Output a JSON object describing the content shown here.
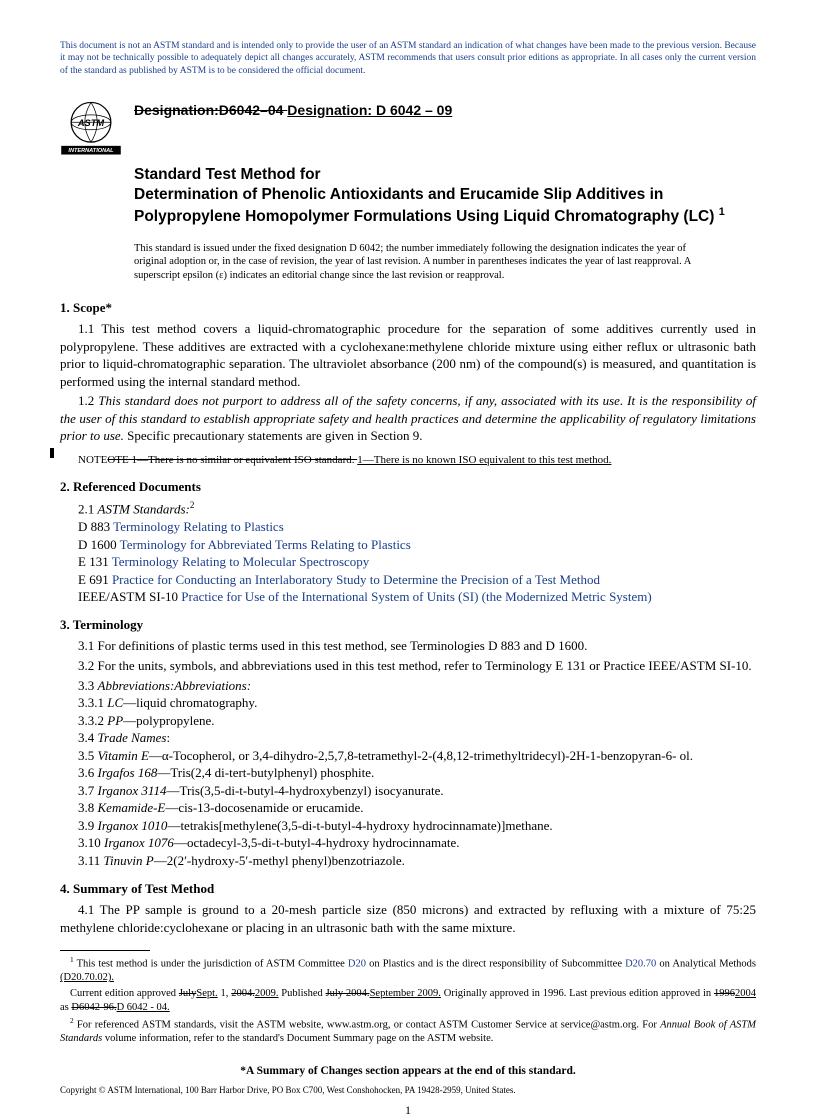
{
  "colors": {
    "link": "#1a3e8c",
    "text": "#000000",
    "background": "#ffffff"
  },
  "disclaimer": "This document is not an ASTM standard and is intended only to provide the user of an ASTM standard an indication of what changes have been made to the previous version. Because it may not be technically possible to adequately depict all changes accurately, ASTM recommends that users consult prior editions as appropriate. In all cases only the current version of the standard as published by ASTM is to be considered the official document.",
  "logo_text": "INTERNATIONAL",
  "designation_old": "Designation:D6042–04 ",
  "designation_new": "Designation: D 6042 – 09",
  "title_line1": "Standard Test Method for",
  "title_line2": "Determination of Phenolic Antioxidants and Erucamide Slip Additives in Polypropylene Homopolymer Formulations Using Liquid Chromatography (LC)",
  "title_sup": "1",
  "issuance": "This standard is issued under the fixed designation D 6042; the number immediately following the designation indicates the year of original adoption or, in the case of revision, the year of last revision. A number in parentheses indicates the year of last reapproval. A superscript epsilon (ε) indicates an editorial change since the last revision or reapproval.",
  "s1_head": "1. Scope*",
  "s1_1": "1.1 This test method covers a liquid-chromatographic procedure for the separation of some additives currently used in polypropylene. These additives are extracted with a cyclohexane:methylene chloride mixture using either reflux or ultrasonic bath prior to liquid-chromatographic separation. The ultraviolet absorbance (200 nm) of the compound(s) is measured, and quantitation is performed using the internal standard method.",
  "s1_2a": "1.2 ",
  "s1_2b": "This standard does not purport to address all of the safety concerns, if any, associated with its use. It is the responsibility of the user of this standard to establish appropriate safety and health practices and determine the applicability of regulatory limitations prior to use.",
  "s1_2c": " Specific precautionary statements are given in Section 9.",
  "note_label": "N",
  "note_old": "OTE 1—There is no similar or equivalent ISO standard. ",
  "note_new": " 1—There is no known ISO equivalent to this test method.",
  "s2_head": "2. Referenced Documents",
  "s2_1": "2.1 ",
  "s2_1i": "ASTM Standards:",
  "s2_1sup": "2",
  "refs": [
    {
      "code": "D 883",
      "title": "Terminology Relating to Plastics"
    },
    {
      "code": "D 1600",
      "title": "Terminology for Abbreviated Terms Relating to Plastics"
    },
    {
      "code": "E 131",
      "title": "Terminology Relating to Molecular Spectroscopy"
    },
    {
      "code": "E 691",
      "title": "Practice for Conducting an Interlaboratory Study to Determine the Precision of a Test Method"
    },
    {
      "code": "IEEE/ASTM SI-10",
      "title": "Practice for Use of the International System of Units (SI) (the Modernized Metric System)"
    }
  ],
  "s3_head": "3. Terminology",
  "s3_1": "3.1 For definitions of plastic terms used in this test method, see Terminologies D 883 and D 1600.",
  "s3_2": "3.2 For the units, symbols, and abbreviations used in this test method, refer to Terminology E 131 or Practice IEEE/ASTM SI-10.",
  "s3_3": "3.3 ",
  "s3_3i": "Abbreviations:Abbreviations:",
  "s3_31": "3.3.1 ",
  "s3_31i": "LC",
  "s3_31t": "—liquid chromatography.",
  "s3_32": "3.3.2 ",
  "s3_32i": "PP",
  "s3_32t": "—polypropylene.",
  "s3_4": "3.4 ",
  "s3_4i": "Trade Names",
  "s3_4t": ":",
  "s3_5": "3.5 ",
  "s3_5i": "Vitamin E",
  "s3_5t": "—α-Tocopherol, or 3,4-dihydro-2,5,7,8-tetramethyl-2-(4,8,12-trimethyltridecyl)-2H-1-benzopyran-6- ol.",
  "s3_6": "3.6 ",
  "s3_6i": "Irgafos 168",
  "s3_6t": "—Tris(2,4 di-tert-butylphenyl) phosphite.",
  "s3_7": "3.7 ",
  "s3_7i": "Irganox 3114",
  "s3_7t": "—Tris(3,5-di-t-butyl-4-hydroxybenzyl) isocyanurate.",
  "s3_8": "3.8 ",
  "s3_8i": "Kemamide-E",
  "s3_8t": "—cis-13-docosenamide or erucamide.",
  "s3_9": "3.9 ",
  "s3_9i": "Irganox 1010",
  "s3_9t": "—tetrakis[methylene(3,5-di-t-butyl-4-hydroxy hydrocinnamate)]methane.",
  "s3_10": "3.10 ",
  "s3_10i": "Irganox 1076",
  "s3_10t": "—octadecyl-3,5-di-t-butyl-4-hydroxy hydrocinnamate.",
  "s3_11": "3.11 ",
  "s3_11i": "Tinuvin P",
  "s3_11t": "—2(2′-hydroxy-5′-methyl phenyl)benzotriazole.",
  "s4_head": "4. Summary of Test Method",
  "s4_1": "4.1 The PP sample is ground to a 20-mesh particle size (850 microns) and extracted by refluxing with a mixture of 75:25 methylene chloride:cyclohexane or placing in an ultrasonic bath with the same mixture.",
  "fn1a": " This test method is under the jurisdiction of ASTM Committee ",
  "fn1b": "D20",
  "fn1c": " on Plastics and is the direct responsibility of Subcommittee ",
  "fn1d": "D20.70",
  "fn1e": " on Analytical Methods ",
  "fn1f": "(D20.70.02).",
  "fn1g": "Current edition approved ",
  "fn1g_old": "July",
  "fn1g_new": "Sept.",
  "fn1h": " 1, ",
  "fn1h_old": "2004.",
  "fn1h_new": "2009.",
  "fn1i": " Published ",
  "fn1i_old": "July 2004.",
  "fn1i_new": "September 2009.",
  "fn1j": " Originally approved in 1996. Last previous edition approved in ",
  "fn1j_old": "1996",
  "fn1j_new": "2004",
  "fn1k": " as ",
  "fn1k_old": "D6042-96.",
  "fn1k_new": "D 6042 - 04.",
  "fn2": " For referenced ASTM standards, visit the ASTM website, www.astm.org, or contact ASTM Customer Service at service@astm.org. For ",
  "fn2i": "Annual Book of ASTM Standards",
  "fn2b": " volume information, refer to the standard's Document Summary page on the ASTM website.",
  "summary": "*A Summary of Changes section appears at the end of this standard.",
  "copyright": "Copyright © ASTM International, 100 Barr Harbor Drive, PO Box C700, West Conshohocken, PA 19428-2959, United States.",
  "pagenum": "1"
}
